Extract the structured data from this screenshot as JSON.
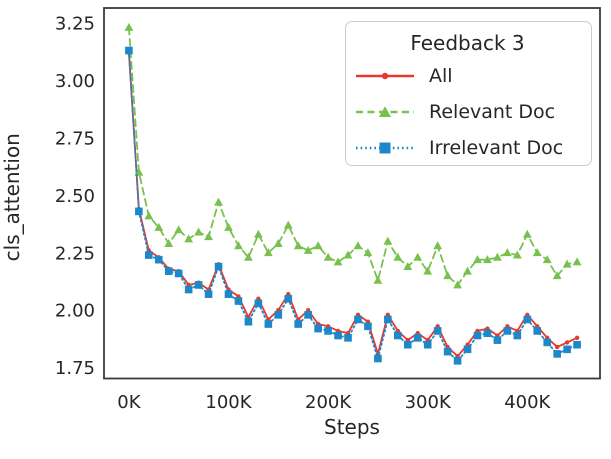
{
  "figure": {
    "background": "#ffffff",
    "text_color": "#262626",
    "spine_color": "#3b3b3b",
    "legend_border_color": "#cccccc"
  },
  "legend": {
    "title": "Feedback 3",
    "position": "upper right",
    "entries": [
      "All",
      "Relevant Doc",
      "Irrelevant Doc"
    ]
  },
  "axes": {
    "x": {
      "label": "Steps",
      "tick_labels": [
        "0K",
        "100K",
        "200K",
        "300K",
        "400K"
      ],
      "tick_values": [
        0,
        100000,
        200000,
        300000,
        400000
      ]
    },
    "y": {
      "label": "cls_attention",
      "tick_labels": [
        "3.25",
        "3.00",
        "2.75",
        "2.50",
        "2.25",
        "2.00",
        "1.75"
      ],
      "tick_values": [
        3.25,
        3.0,
        2.75,
        2.5,
        2.25,
        2.0,
        1.75
      ]
    }
  },
  "chart_data": {
    "type": "line",
    "title": "",
    "xlabel": "Steps",
    "ylabel": "cls_attention",
    "legend_title": "Feedback 3",
    "legend_position": "upper right",
    "grid": false,
    "xlim": [
      -25000,
      473000
    ],
    "ylim": [
      1.7,
      3.32
    ],
    "x": [
      0,
      10000,
      20000,
      30000,
      40000,
      50000,
      60000,
      70000,
      80000,
      90000,
      100000,
      110000,
      120000,
      130000,
      140000,
      150000,
      160000,
      170000,
      180000,
      190000,
      200000,
      210000,
      220000,
      230000,
      240000,
      250000,
      260000,
      270000,
      280000,
      290000,
      300000,
      310000,
      320000,
      330000,
      340000,
      350000,
      360000,
      370000,
      380000,
      390000,
      400000,
      410000,
      420000,
      430000,
      440000,
      450000
    ],
    "series": [
      {
        "name": "All",
        "color": "#e6392f",
        "line_style": "solid",
        "marker": "circle",
        "values": [
          3.12,
          2.44,
          2.26,
          2.23,
          2.18,
          2.17,
          2.11,
          2.12,
          2.09,
          2.2,
          2.09,
          2.06,
          1.97,
          2.05,
          1.96,
          2.0,
          2.07,
          1.96,
          2.0,
          1.94,
          1.93,
          1.91,
          1.9,
          1.98,
          1.95,
          1.81,
          1.98,
          1.91,
          1.87,
          1.9,
          1.87,
          1.93,
          1.84,
          1.8,
          1.85,
          1.91,
          1.92,
          1.89,
          1.93,
          1.91,
          1.98,
          1.93,
          1.88,
          1.84,
          1.86,
          1.88
        ]
      },
      {
        "name": "Relevant Doc",
        "color": "#78c14e",
        "line_style": "dashed",
        "marker": "triangle",
        "values": [
          3.23,
          2.6,
          2.41,
          2.36,
          2.29,
          2.35,
          2.31,
          2.34,
          2.32,
          2.47,
          2.36,
          2.28,
          2.23,
          2.33,
          2.25,
          2.29,
          2.37,
          2.28,
          2.26,
          2.28,
          2.23,
          2.21,
          2.24,
          2.28,
          2.25,
          2.13,
          2.3,
          2.23,
          2.19,
          2.23,
          2.17,
          2.28,
          2.15,
          2.11,
          2.17,
          2.22,
          2.22,
          2.23,
          2.25,
          2.24,
          2.33,
          2.25,
          2.22,
          2.15,
          2.2,
          2.21
        ]
      },
      {
        "name": "Irrelevant Doc",
        "color": "#1c87c9",
        "line_style": "dotted",
        "marker": "square",
        "values": [
          3.13,
          2.43,
          2.24,
          2.22,
          2.17,
          2.16,
          2.09,
          2.11,
          2.07,
          2.19,
          2.07,
          2.04,
          1.95,
          2.03,
          1.94,
          1.98,
          2.05,
          1.94,
          1.98,
          1.92,
          1.91,
          1.89,
          1.88,
          1.96,
          1.93,
          1.79,
          1.96,
          1.89,
          1.85,
          1.88,
          1.85,
          1.91,
          1.82,
          1.78,
          1.83,
          1.89,
          1.9,
          1.87,
          1.91,
          1.89,
          1.96,
          1.91,
          1.86,
          1.81,
          1.83,
          1.85
        ]
      }
    ]
  }
}
